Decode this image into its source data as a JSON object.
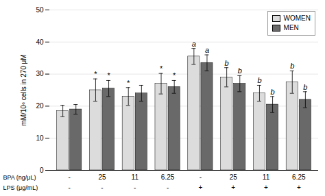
{
  "chart_data": {
    "type": "bar",
    "categories": [
      "-",
      "25",
      "11",
      "6.25",
      "-",
      "25",
      "11",
      "6.25"
    ],
    "xlabel": "BPA (ng/μL)",
    "categories_2": [
      "-",
      "-",
      "-",
      "-",
      "+",
      "+",
      "+",
      "+"
    ],
    "xlabel_2": "LPS (μg/mL)",
    "ylabel": "mM/10⁶ cells in 270 μM",
    "ylim": [
      0,
      50
    ],
    "yticks": [
      0,
      10,
      20,
      30,
      40,
      50
    ],
    "grid": true,
    "legend": "upper right",
    "series": [
      {
        "name": "WOMEN",
        "color": "#dcdcdc",
        "values": [
          18.5,
          25.0,
          23.0,
          27.0,
          35.5,
          29.0,
          24.0,
          27.5
        ],
        "errors": [
          1.8,
          3.5,
          2.8,
          3.2,
          2.5,
          3.0,
          2.5,
          3.5
        ],
        "annotations": [
          null,
          "*",
          "*",
          "*",
          "a",
          "b",
          "b",
          "b"
        ]
      },
      {
        "name": "MEN",
        "color": "#696969",
        "values": [
          19.0,
          25.5,
          24.0,
          26.0,
          33.5,
          27.0,
          20.5,
          22.0
        ],
        "errors": [
          1.5,
          2.5,
          2.5,
          2.0,
          2.5,
          2.5,
          2.5,
          2.5
        ],
        "annotations": [
          null,
          "*",
          null,
          "*",
          "a",
          "b",
          "b",
          "b"
        ]
      }
    ]
  }
}
